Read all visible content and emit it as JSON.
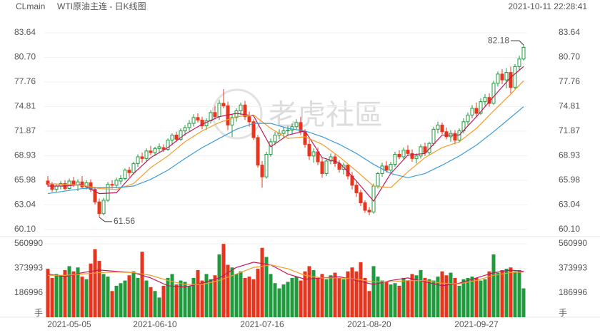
{
  "chart_data": {
    "type": "candlestick",
    "symbol": "CLmain",
    "title": "WTI原油主连 - 日K线图",
    "timestamp": "2021-10-11 22:28:41",
    "watermark": "老虎社區",
    "up_color": "#1f9a3c",
    "down_color": "#e8341c",
    "grid": true,
    "categories": [
      null,
      null,
      null,
      null,
      null,
      "2021-05-05",
      null,
      null,
      null,
      null,
      null,
      null,
      null,
      null,
      null,
      null,
      null,
      null,
      null,
      null,
      null,
      null,
      null,
      null,
      null,
      "2021-06-10",
      null,
      null,
      null,
      null,
      null,
      null,
      null,
      null,
      null,
      null,
      null,
      null,
      null,
      null,
      null,
      null,
      null,
      null,
      null,
      null,
      null,
      null,
      null,
      null,
      "2021-07-16",
      null,
      null,
      null,
      null,
      null,
      null,
      null,
      null,
      null,
      null,
      null,
      null,
      null,
      null,
      null,
      null,
      null,
      null,
      null,
      null,
      null,
      null,
      null,
      null,
      "2021-08-20",
      null,
      null,
      null,
      null,
      null,
      null,
      null,
      null,
      null,
      null,
      null,
      null,
      null,
      null,
      null,
      null,
      null,
      null,
      null,
      null,
      null,
      null,
      null,
      null,
      "2021-09-27",
      null,
      null,
      null,
      null,
      null,
      null,
      null,
      null,
      null,
      null,
      null
    ],
    "candles": [
      [
        65.9,
        66.5,
        65.2,
        65.5
      ],
      [
        65.5,
        65.8,
        64.6,
        64.9
      ],
      [
        64.9,
        65.6,
        64.5,
        65.3
      ],
      [
        65.3,
        65.9,
        64.9,
        65.6
      ],
      [
        65.6,
        66.0,
        64.8,
        65.0
      ],
      [
        65.0,
        66.2,
        64.9,
        65.9
      ],
      [
        65.9,
        66.4,
        65.2,
        65.4
      ],
      [
        65.4,
        66.1,
        64.7,
        65.8
      ],
      [
        65.8,
        66.5,
        65.0,
        65.2
      ],
      [
        65.2,
        66.0,
        64.9,
        65.7
      ],
      [
        65.7,
        66.1,
        64.6,
        64.9
      ],
      [
        64.9,
        65.2,
        63.1,
        63.4
      ],
      [
        63.4,
        63.8,
        61.56,
        62.0
      ],
      [
        62.0,
        63.9,
        61.8,
        63.6
      ],
      [
        63.6,
        65.8,
        63.4,
        65.5
      ],
      [
        65.5,
        66.0,
        65.0,
        65.4
      ],
      [
        65.4,
        66.3,
        65.1,
        66.0
      ],
      [
        65.9,
        66.6,
        65.5,
        66.2
      ],
      [
        66.2,
        67.4,
        66.0,
        67.2
      ],
      [
        67.2,
        67.6,
        66.4,
        66.9
      ],
      [
        66.9,
        68.2,
        66.7,
        68.0
      ],
      [
        68.0,
        69.1,
        67.6,
        68.8
      ],
      [
        68.8,
        69.3,
        68.1,
        68.6
      ],
      [
        68.6,
        69.8,
        68.3,
        69.5
      ],
      [
        69.5,
        70.1,
        69.0,
        69.3
      ],
      [
        69.3,
        70.0,
        68.9,
        69.8
      ],
      [
        69.8,
        70.4,
        69.3,
        70.0
      ],
      [
        69.9,
        70.3,
        69.4,
        69.7
      ],
      [
        69.7,
        71.0,
        69.5,
        70.8
      ],
      [
        70.8,
        71.6,
        70.2,
        71.4
      ],
      [
        71.4,
        71.8,
        70.6,
        70.9
      ],
      [
        70.9,
        72.2,
        70.7,
        71.9
      ],
      [
        71.9,
        72.6,
        71.3,
        72.3
      ],
      [
        72.3,
        73.2,
        71.9,
        72.8
      ],
      [
        72.8,
        73.9,
        72.4,
        73.5
      ],
      [
        73.5,
        74.0,
        72.9,
        73.2
      ],
      [
        73.2,
        73.6,
        72.1,
        72.5
      ],
      [
        72.5,
        73.4,
        72.0,
        73.1
      ],
      [
        73.1,
        74.4,
        72.8,
        74.1
      ],
      [
        74.1,
        74.9,
        73.3,
        73.6
      ],
      [
        73.6,
        75.6,
        73.2,
        75.2
      ],
      [
        75.2,
        76.9,
        74.6,
        74.9
      ],
      [
        74.9,
        75.4,
        72.0,
        72.6
      ],
      [
        72.6,
        73.9,
        71.2,
        73.5
      ],
      [
        73.5,
        74.6,
        73.0,
        74.3
      ],
      [
        74.3,
        75.3,
        73.8,
        75.0
      ],
      [
        75.0,
        75.5,
        73.2,
        73.6
      ],
      [
        73.6,
        74.2,
        72.4,
        73.0
      ],
      [
        73.0,
        73.3,
        70.8,
        71.1
      ],
      [
        71.1,
        71.4,
        67.5,
        67.8
      ],
      [
        67.8,
        68.3,
        65.1,
        66.4
      ],
      [
        66.4,
        69.4,
        66.2,
        69.1
      ],
      [
        69.1,
        71.0,
        68.8,
        70.6
      ],
      [
        70.6,
        71.8,
        70.2,
        71.4
      ],
      [
        71.4,
        72.1,
        70.9,
        71.6
      ],
      [
        71.6,
        72.3,
        71.0,
        71.9
      ],
      [
        71.9,
        72.5,
        71.3,
        72.0
      ],
      [
        72.0,
        72.8,
        71.5,
        72.4
      ],
      [
        72.4,
        73.3,
        72.0,
        72.9
      ],
      [
        72.9,
        73.6,
        71.4,
        71.8
      ],
      [
        71.8,
        72.1,
        69.9,
        70.3
      ],
      [
        70.3,
        70.9,
        68.4,
        68.9
      ],
      [
        68.9,
        69.8,
        68.1,
        69.4
      ],
      [
        69.4,
        69.9,
        67.8,
        68.2
      ],
      [
        68.2,
        68.7,
        66.3,
        66.8
      ],
      [
        66.8,
        68.6,
        66.5,
        68.3
      ],
      [
        68.3,
        69.2,
        67.9,
        68.8
      ],
      [
        68.8,
        69.1,
        67.6,
        68.0
      ],
      [
        68.0,
        68.4,
        66.9,
        67.3
      ],
      [
        67.3,
        68.1,
        66.7,
        67.8
      ],
      [
        67.8,
        68.0,
        66.1,
        66.5
      ],
      [
        66.5,
        67.0,
        64.9,
        65.4
      ],
      [
        65.4,
        66.0,
        64.0,
        64.5
      ],
      [
        64.5,
        64.9,
        62.9,
        63.3
      ],
      [
        63.3,
        63.6,
        62.1,
        62.4
      ],
      [
        62.4,
        62.8,
        61.8,
        62.2
      ],
      [
        62.2,
        65.6,
        62.0,
        65.3
      ],
      [
        65.3,
        67.0,
        65.0,
        66.8
      ],
      [
        66.8,
        68.1,
        66.4,
        67.7
      ],
      [
        67.7,
        68.3,
        66.9,
        67.2
      ],
      [
        67.2,
        68.2,
        66.9,
        67.9
      ],
      [
        67.9,
        69.4,
        67.6,
        69.1
      ],
      [
        69.1,
        69.6,
        68.5,
        68.8
      ],
      [
        68.8,
        69.9,
        68.4,
        69.6
      ],
      [
        69.6,
        70.2,
        68.9,
        69.2
      ],
      [
        69.2,
        69.7,
        68.2,
        68.6
      ],
      [
        68.6,
        69.2,
        68.0,
        68.9
      ],
      [
        68.9,
        70.3,
        68.6,
        70.0
      ],
      [
        70.0,
        70.5,
        68.9,
        69.3
      ],
      [
        69.3,
        70.6,
        69.0,
        70.4
      ],
      [
        70.4,
        72.4,
        70.1,
        72.1
      ],
      [
        72.1,
        73.0,
        71.6,
        72.6
      ],
      [
        72.6,
        72.9,
        71.5,
        71.8
      ],
      [
        71.8,
        72.3,
        70.9,
        71.2
      ],
      [
        71.2,
        72.0,
        70.6,
        71.6
      ],
      [
        71.6,
        72.0,
        70.3,
        70.8
      ],
      [
        70.8,
        72.2,
        70.5,
        71.9
      ],
      [
        71.9,
        73.4,
        71.6,
        73.0
      ],
      [
        73.0,
        74.1,
        72.6,
        73.8
      ],
      [
        73.8,
        75.0,
        73.4,
        74.6
      ],
      [
        74.6,
        75.3,
        73.6,
        74.0
      ],
      [
        74.0,
        75.8,
        73.8,
        75.4
      ],
      [
        75.4,
        76.3,
        74.9,
        75.9
      ],
      [
        75.9,
        76.4,
        74.8,
        75.2
      ],
      [
        75.2,
        77.9,
        75.0,
        77.6
      ],
      [
        77.6,
        79.0,
        77.2,
        78.7
      ],
      [
        78.7,
        79.3,
        77.5,
        78.0
      ],
      [
        78.0,
        79.4,
        77.0,
        78.9
      ],
      [
        78.9,
        79.6,
        76.4,
        77.1
      ],
      [
        77.1,
        79.9,
        76.9,
        79.6
      ],
      [
        79.6,
        80.9,
        79.2,
        80.5
      ],
      [
        80.5,
        82.18,
        80.3,
        81.9
      ]
    ],
    "ylim": [
      60.1,
      83.64
    ],
    "yticks": [
      {
        "value": 60.1,
        "label": "60.10"
      },
      63.04,
      65.98,
      68.93,
      71.87,
      74.81,
      77.76,
      {
        "value": 80.7,
        "label": "80.70"
      },
      83.64
    ],
    "ma": [
      {
        "color": "#c2185b",
        "x": [
          0,
          4,
          8,
          12,
          16,
          20,
          24,
          28,
          32,
          36,
          40,
          44,
          48,
          52,
          56,
          60,
          64,
          68,
          72,
          76,
          80,
          84,
          88,
          92,
          96,
          100,
          104,
          108,
          111
        ],
        "values": [
          65.3,
          65.3,
          65.5,
          64.4,
          64.5,
          66.8,
          68.7,
          69.9,
          71.5,
          72.7,
          73.6,
          74.0,
          73.7,
          70.0,
          71.4,
          71.9,
          68.7,
          68.1,
          65.9,
          63.5,
          66.8,
          69.0,
          69.2,
          71.4,
          71.4,
          73.6,
          76.0,
          78.3,
          79.6
        ]
      },
      {
        "color": "#f39c2c",
        "x": [
          0,
          4,
          8,
          12,
          16,
          20,
          24,
          28,
          32,
          36,
          40,
          44,
          48,
          52,
          56,
          60,
          64,
          68,
          72,
          76,
          80,
          84,
          88,
          92,
          96,
          100,
          104,
          108,
          111
        ],
        "values": [
          65.6,
          65.5,
          65.4,
          65.0,
          64.9,
          65.6,
          67.5,
          68.9,
          70.6,
          71.9,
          72.9,
          73.6,
          73.8,
          72.2,
          71.0,
          71.2,
          70.3,
          68.8,
          67.1,
          65.3,
          65.1,
          67.0,
          68.7,
          69.9,
          70.6,
          72.2,
          74.3,
          76.3,
          77.9
        ]
      },
      {
        "color": "#3b9bd9",
        "x": [
          0,
          4,
          8,
          12,
          16,
          20,
          24,
          28,
          32,
          36,
          40,
          44,
          48,
          52,
          56,
          60,
          64,
          68,
          72,
          76,
          80,
          84,
          88,
          92,
          96,
          100,
          104,
          108,
          111
        ],
        "values": [
          64.4,
          64.7,
          65.0,
          65.1,
          65.1,
          65.3,
          66.1,
          67.2,
          68.6,
          69.9,
          71.0,
          72.1,
          72.8,
          72.8,
          72.2,
          71.9,
          71.2,
          70.3,
          69.2,
          67.9,
          66.8,
          66.3,
          66.8,
          67.8,
          68.9,
          70.2,
          71.8,
          73.5,
          74.8
        ]
      }
    ],
    "annotations": [
      82.18,
      61.56
    ],
    "volume": {
      "unit": "手",
      "ylim": [
        0,
        560990
      ],
      "yticks": [
        560990,
        373993,
        186996
      ],
      "values": [
        370000,
        300000,
        330000,
        320000,
        360000,
        390000,
        350000,
        380000,
        310000,
        290000,
        410000,
        520000,
        430000,
        330000,
        310000,
        200000,
        240000,
        260000,
        280000,
        320000,
        350000,
        300000,
        500000,
        280000,
        230000,
        200000,
        150000,
        240000,
        300000,
        330000,
        250000,
        280000,
        270000,
        240000,
        300000,
        360000,
        280000,
        330000,
        290000,
        320000,
        480000,
        560000,
        400000,
        380000,
        330000,
        350000,
        300000,
        310000,
        290000,
        370000,
        530000,
        460000,
        330000,
        260000,
        220000,
        250000,
        270000,
        300000,
        310000,
        280000,
        350000,
        390000,
        360000,
        300000,
        330000,
        290000,
        320000,
        340000,
        300000,
        290000,
        350000,
        380000,
        350000,
        420000,
        300000,
        200000,
        390000,
        310000,
        280000,
        270000,
        250000,
        260000,
        240000,
        300000,
        280000,
        330000,
        320000,
        360000,
        300000,
        290000,
        280000,
        310000,
        350000,
        320000,
        340000,
        300000,
        240000,
        290000,
        300000,
        310000,
        300000,
        280000,
        290000,
        350000,
        480000,
        340000,
        360000,
        370000,
        380000,
        350000,
        360000,
        220000
      ],
      "ma": [
        {
          "color": "#c2185b",
          "x": [
            0,
            4,
            8,
            12,
            16,
            20,
            24,
            28,
            32,
            36,
            40,
            44,
            48,
            52,
            56,
            60,
            64,
            68,
            72,
            76,
            80,
            84,
            88,
            92,
            96,
            100,
            104,
            108,
            111
          ],
          "values": [
            330000,
            310000,
            340000,
            360000,
            350000,
            340000,
            300000,
            240000,
            230000,
            260000,
            300000,
            380000,
            420000,
            400000,
            330000,
            290000,
            300000,
            310000,
            280000,
            250000,
            280000,
            300000,
            270000,
            240000,
            260000,
            300000,
            340000,
            360000,
            350000
          ]
        },
        {
          "color": "#f39c2c",
          "x": [
            0,
            4,
            8,
            12,
            16,
            20,
            24,
            28,
            32,
            36,
            40,
            44,
            48,
            52,
            56,
            60,
            64,
            68,
            72,
            76,
            80,
            84,
            88,
            92,
            96,
            100,
            104,
            108,
            111
          ],
          "values": [
            320000,
            320000,
            330000,
            340000,
            345000,
            340000,
            320000,
            280000,
            250000,
            250000,
            280000,
            330000,
            380000,
            400000,
            370000,
            320000,
            300000,
            300000,
            290000,
            270000,
            270000,
            280000,
            280000,
            260000,
            255000,
            280000,
            320000,
            340000,
            345000
          ]
        }
      ]
    }
  }
}
